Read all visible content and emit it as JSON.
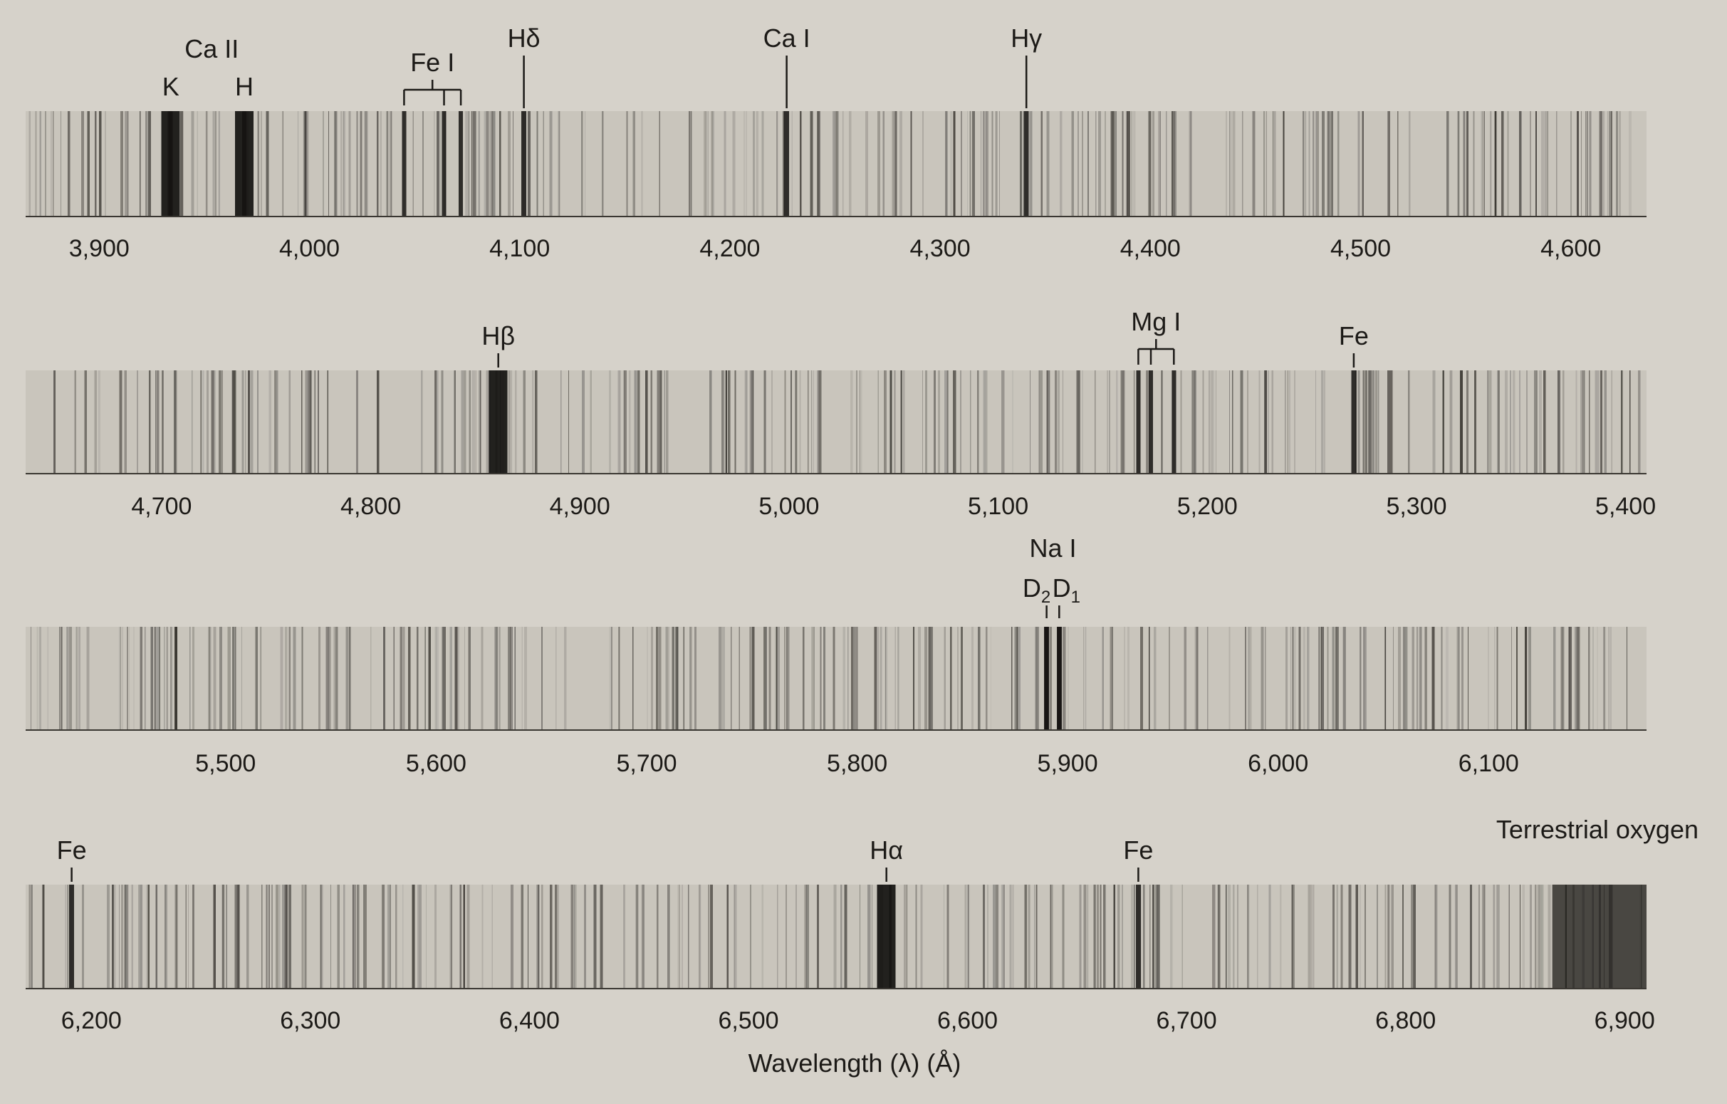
{
  "chart_data": {
    "type": "spectrum",
    "xlabel": "Wavelength (λ) (Å)",
    "panels": [
      {
        "range": [
          3865,
          4636
        ],
        "ticks": [
          3900,
          4000,
          4100,
          4200,
          4300,
          4400,
          4500,
          4600
        ],
        "tick_labels": [
          "3,900",
          "4,000",
          "4,100",
          "4,200",
          "4,300",
          "4,400",
          "4,500",
          "4,600"
        ],
        "lines": [
          {
            "wl": 3934,
            "label": "K"
          },
          {
            "wl": 3969,
            "label": "H"
          },
          {
            "wl": 4102,
            "label": "Hδ"
          },
          {
            "wl": 4227,
            "label": "Ca I"
          },
          {
            "wl": 4341,
            "label": "Hγ"
          }
        ],
        "groups": [
          {
            "label": "Ca II",
            "members": [
              3934,
              3969
            ]
          },
          {
            "label": "Fe I",
            "members": [
              4045,
              4064,
              4072
            ]
          }
        ]
      },
      {
        "range": [
          4635,
          5410
        ],
        "ticks": [
          4700,
          4800,
          4900,
          5000,
          5100,
          5200,
          5300,
          5400
        ],
        "tick_labels": [
          "4,700",
          "4,800",
          "4,900",
          "5,000",
          "5,100",
          "5,200",
          "5,300",
          "5,400"
        ],
        "lines": [
          {
            "wl": 4861,
            "label": "Hβ"
          },
          {
            "wl": 5270,
            "label": "Fe"
          }
        ],
        "groups": [
          {
            "label": "Mg I",
            "members": [
              5167,
              5173,
              5184
            ]
          }
        ]
      },
      {
        "range": [
          5405,
          6175
        ],
        "ticks": [
          5500,
          5600,
          5700,
          5800,
          5900,
          6000,
          6100
        ],
        "tick_labels": [
          "5,500",
          "5,600",
          "5,700",
          "5,800",
          "5,900",
          "6,000",
          "6,100"
        ],
        "lines": [
          {
            "wl": 5890,
            "label": "D",
            "sub": "2"
          },
          {
            "wl": 5896,
            "label": "D",
            "sub": "1"
          }
        ],
        "groups": [
          {
            "label": "Na I",
            "members": [
              5890,
              5896
            ]
          }
        ]
      },
      {
        "range": [
          6170,
          6910
        ],
        "ticks": [
          6200,
          6300,
          6400,
          6500,
          6600,
          6700,
          6800,
          6900
        ],
        "tick_labels": [
          "6,200",
          "6,300",
          "6,400",
          "6,500",
          "6,600",
          "6,700",
          "6,800",
          "6,900"
        ],
        "lines": [
          {
            "wl": 6191,
            "label": "Fe"
          },
          {
            "wl": 6563,
            "label": "Hα"
          },
          {
            "wl": 6678,
            "label": "Fe"
          }
        ],
        "annotations": [
          {
            "label": "Terrestrial oxygen",
            "wl_range": [
              6867,
              6910
            ]
          }
        ]
      }
    ]
  }
}
